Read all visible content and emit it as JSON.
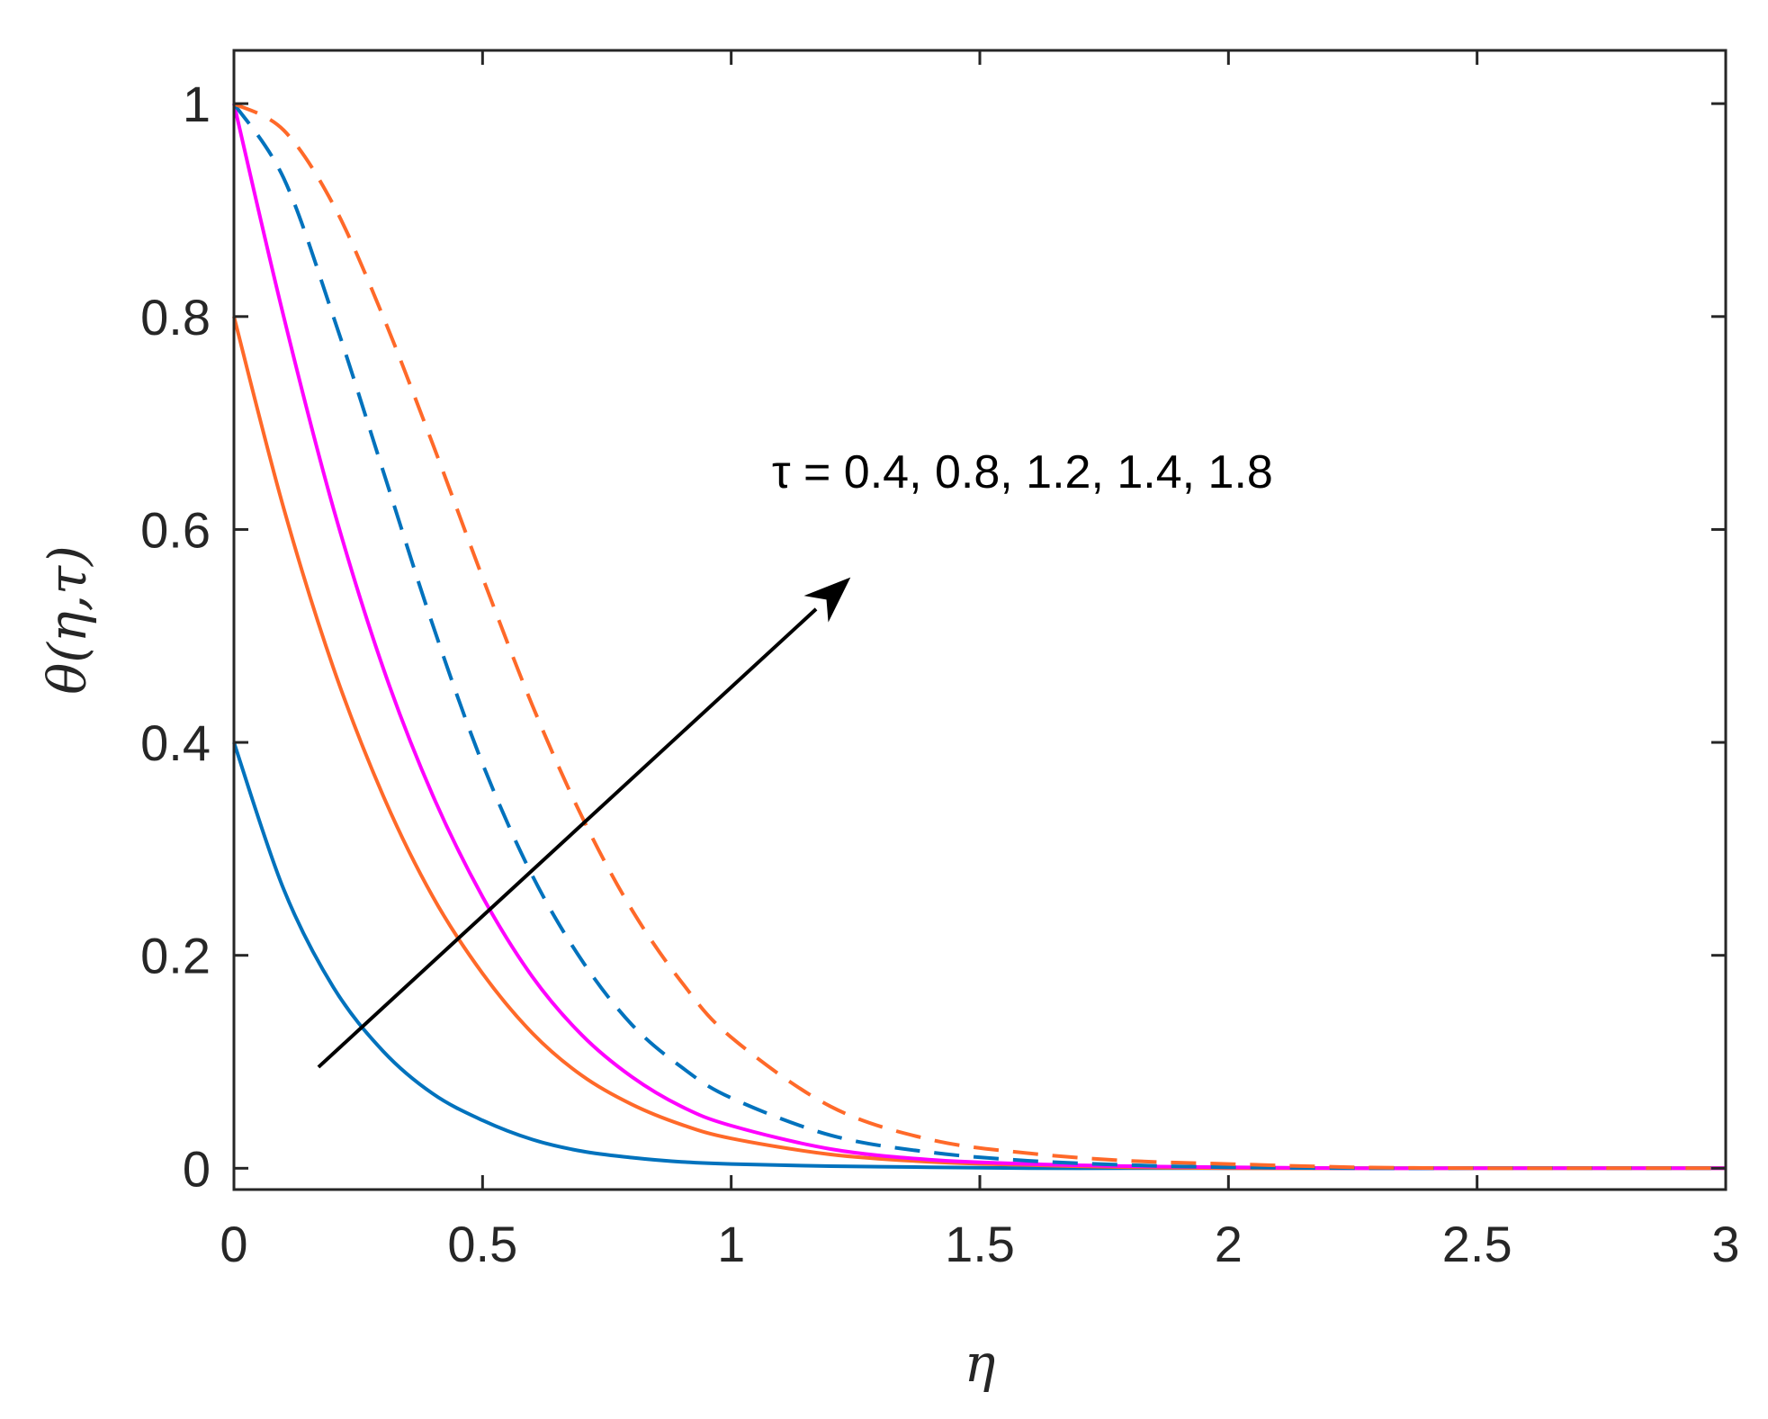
{
  "chart_data": {
    "type": "line",
    "title": "",
    "xlabel": "η",
    "ylabel": "θ(η,τ)",
    "xlim": [
      0,
      3
    ],
    "ylim": [
      -0.02,
      1.05
    ],
    "x_ticks": [
      0,
      0.5,
      1,
      1.5,
      2,
      2.5,
      3
    ],
    "x_tick_labels": [
      "0",
      "0.5",
      "1",
      "1.5",
      "2",
      "2.5",
      "3"
    ],
    "y_ticks": [
      0,
      0.2,
      0.4,
      0.6,
      0.8,
      1
    ],
    "y_tick_labels": [
      "0",
      "0.2",
      "0.4",
      "0.6",
      "0.8",
      "1"
    ],
    "grid": false,
    "annotation": {
      "text": "τ = 0.4, 0.8, 1.2, 1.4, 1.8",
      "arrow_from": [
        0.17,
        0.095
      ],
      "arrow_to": [
        1.24,
        0.555
      ]
    },
    "x": [
      0,
      0.1,
      0.2,
      0.3,
      0.4,
      0.5,
      0.6,
      0.7,
      0.8,
      0.9,
      1.0,
      1.2,
      1.4,
      1.6,
      1.8,
      2.0,
      2.25,
      2.5,
      2.75,
      3.0
    ],
    "series": [
      {
        "color": "#0072BD",
        "dash": "solid",
        "values": [
          0.4,
          0.262,
          0.17,
          0.11,
          0.07,
          0.045,
          0.027,
          0.016,
          0.01,
          0.006,
          0.004,
          0.002,
          0.001,
          0.0,
          0.0,
          0.0,
          0.0,
          0.0,
          0.0,
          0.0
        ]
      },
      {
        "color": "#FF6929",
        "dash": "solid",
        "values": [
          0.8,
          0.62,
          0.47,
          0.35,
          0.255,
          0.183,
          0.127,
          0.087,
          0.06,
          0.041,
          0.028,
          0.013,
          0.006,
          0.003,
          0.001,
          0.0,
          0.0,
          0.0,
          0.0,
          0.0
        ]
      },
      {
        "color": "#FF00FF",
        "dash": "solid",
        "values": [
          1.0,
          0.8,
          0.62,
          0.47,
          0.35,
          0.255,
          0.18,
          0.125,
          0.086,
          0.058,
          0.04,
          0.018,
          0.008,
          0.004,
          0.002,
          0.001,
          0.0,
          0.0,
          0.0,
          0.0
        ]
      },
      {
        "color": "#0072BD",
        "dash": "dashed",
        "values": [
          1.0,
          0.93,
          0.8,
          0.655,
          0.51,
          0.38,
          0.275,
          0.195,
          0.135,
          0.095,
          0.066,
          0.031,
          0.015,
          0.007,
          0.003,
          0.001,
          0.0,
          0.0,
          0.0,
          0.0
        ]
      },
      {
        "color": "#FF6929",
        "dash": "dashed",
        "values": [
          1.0,
          0.975,
          0.905,
          0.8,
          0.68,
          0.555,
          0.435,
          0.33,
          0.243,
          0.175,
          0.123,
          0.058,
          0.027,
          0.014,
          0.007,
          0.004,
          0.001,
          0.0,
          0.0,
          0.0
        ]
      }
    ]
  }
}
